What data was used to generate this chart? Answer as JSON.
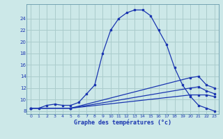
{
  "title": "Graphe des températures (°c)",
  "bg_color": "#cce8e8",
  "grid_color": "#aacccc",
  "line_color": "#1a35b0",
  "xlim": [
    -0.5,
    23.5
  ],
  "ylim": [
    7.5,
    26.5
  ],
  "xticks": [
    0,
    1,
    2,
    3,
    4,
    5,
    6,
    7,
    8,
    9,
    10,
    11,
    12,
    13,
    14,
    15,
    16,
    17,
    18,
    19,
    20,
    21,
    22,
    23
  ],
  "yticks": [
    8,
    10,
    12,
    14,
    16,
    18,
    20,
    22,
    24
  ],
  "curve1_x": [
    0,
    1,
    2,
    3,
    4,
    5,
    6,
    7,
    8,
    9,
    10,
    11,
    12,
    13,
    14,
    15,
    16,
    17,
    18,
    19,
    20,
    21,
    22,
    23
  ],
  "curve1_y": [
    8.5,
    8.5,
    9.0,
    9.2,
    9.0,
    9.0,
    9.5,
    11.0,
    12.5,
    18.0,
    22.0,
    24.0,
    25.0,
    25.5,
    25.5,
    24.5,
    22.0,
    19.5,
    15.5,
    12.5,
    10.5,
    9.0,
    8.5,
    8.0
  ],
  "curve2_x": [
    0,
    5,
    20,
    21,
    22,
    23
  ],
  "curve2_y": [
    8.5,
    8.5,
    13.8,
    14.0,
    12.5,
    12.0
  ],
  "curve3_x": [
    0,
    5,
    20,
    21,
    22,
    23
  ],
  "curve3_y": [
    8.5,
    8.5,
    12.0,
    12.2,
    11.5,
    11.0
  ],
  "curve4_x": [
    0,
    5,
    20,
    21,
    22,
    23
  ],
  "curve4_y": [
    8.5,
    8.5,
    10.8,
    10.8,
    10.8,
    10.5
  ]
}
